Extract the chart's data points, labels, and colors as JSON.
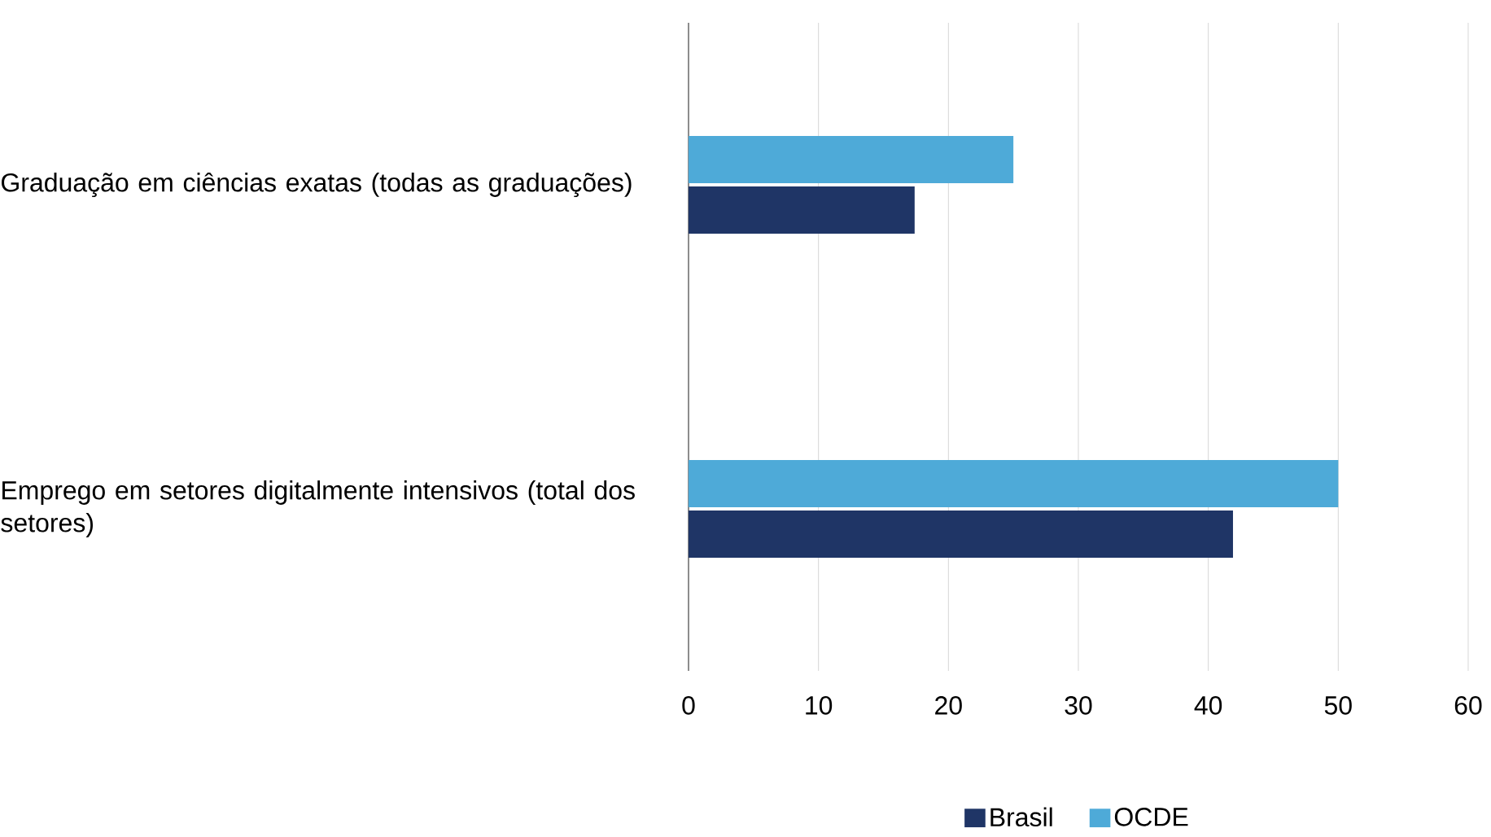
{
  "chart_data": {
    "type": "bar",
    "orientation": "horizontal",
    "categories": [
      "Graduação em ciências exatas (todas as graduações)",
      "Emprego em setores digitalmente intensivos (total dos setores)"
    ],
    "series": [
      {
        "name": "Brasil",
        "color": "#1f3566",
        "values": [
          17.4,
          41.9
        ]
      },
      {
        "name": "OCDE",
        "color": "#4eaad8",
        "values": [
          25,
          50
        ]
      }
    ],
    "xlim": [
      0,
      60
    ],
    "xticks": [
      0,
      10,
      20,
      30,
      40,
      50,
      60
    ],
    "grid": "x",
    "legend": "bottom"
  }
}
